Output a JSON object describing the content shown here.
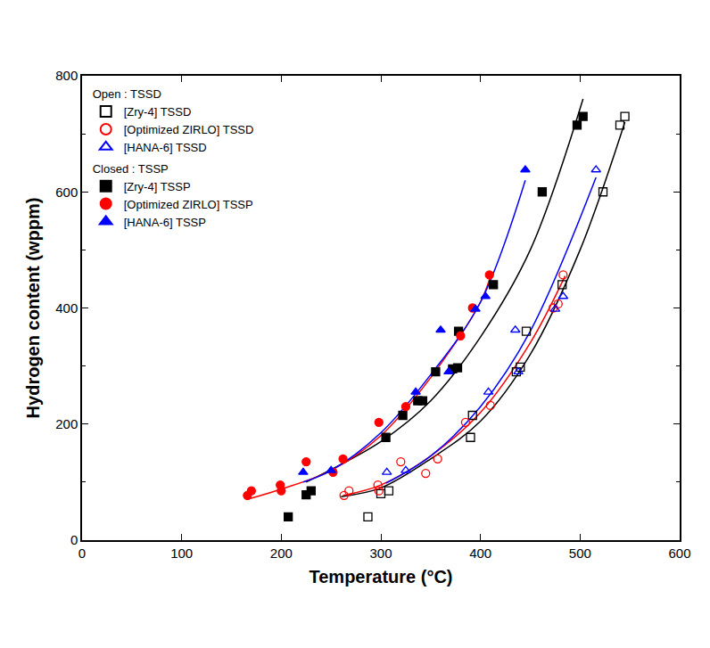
{
  "chart_data": {
    "type": "scatter",
    "x_label": "Temperature (°C)",
    "y_label": "Hydrogen content (wppm)",
    "xlim": [
      0,
      600
    ],
    "xticks": [
      0,
      100,
      200,
      300,
      400,
      500,
      600
    ],
    "ylim": [
      0,
      800
    ],
    "yticks": [
      0,
      200,
      400,
      600,
      800
    ],
    "grid": false,
    "legend": "top-left",
    "series": [
      {
        "name": "[Zry-4] TSSD",
        "group": "Open : TSSD",
        "color": "#000000",
        "marker": "square-open",
        "x": [
          287,
          300,
          308,
          390,
          392,
          436,
          440,
          446,
          482,
          523,
          540,
          545
        ],
        "values": [
          40,
          80,
          85,
          177,
          215,
          290,
          298,
          360,
          440,
          600,
          715,
          730
        ],
        "fit": {
          "x": [
            260,
            300,
            350,
            400,
            450,
            500,
            545
          ],
          "values": [
            75,
            90,
            140,
            205,
            320,
            500,
            720
          ]
        }
      },
      {
        "name": "[Optimized ZIRLO] TSSD",
        "group": "Open : TSSD",
        "color": "#ff0000",
        "marker": "circle-open",
        "x": [
          263,
          268,
          297,
          298,
          320,
          345,
          357,
          385,
          410,
          473,
          478,
          483
        ],
        "values": [
          77,
          85,
          95,
          85,
          135,
          115,
          140,
          203,
          232,
          400,
          407,
          457
        ],
        "fit": {
          "x": [
            262,
            300,
            350,
            400,
            450,
            485
          ],
          "values": [
            77,
            95,
            145,
            220,
            340,
            455
          ]
        }
      },
      {
        "name": "[HANA-6] TSSD",
        "group": "Open : TSSD",
        "color": "#0000ff",
        "marker": "triangle-up-open",
        "x": [
          306,
          325,
          408,
          435,
          438,
          475,
          483,
          516
        ],
        "values": [
          117,
          120,
          255,
          362,
          290,
          398,
          420,
          638
        ],
        "fit": {
          "x": [
            305,
            350,
            400,
            450,
            516
          ],
          "values": [
            98,
            145,
            230,
            360,
            625
          ]
        }
      },
      {
        "name": "[Zry-4] TSSP",
        "group": "Closed : TSSP",
        "color": "#000000",
        "marker": "square",
        "x": [
          207,
          225,
          230,
          305,
          322,
          337,
          342,
          355,
          372,
          377,
          378,
          413,
          462,
          497,
          503
        ],
        "values": [
          40,
          78,
          85,
          177,
          215,
          240,
          240,
          290,
          295,
          297,
          360,
          440,
          600,
          715,
          730
        ],
        "fit": {
          "x": [
            225,
            300,
            350,
            400,
            450,
            503
          ],
          "values": [
            100,
            170,
            240,
            350,
            500,
            760
          ]
        }
      },
      {
        "name": "[Optimized ZIRLO] TSSP",
        "group": "Closed : TSSP",
        "color": "#ff0000",
        "marker": "circle",
        "x": [
          166,
          170,
          199,
          200,
          225,
          252,
          262,
          298,
          325,
          380,
          392,
          409
        ],
        "values": [
          77,
          85,
          95,
          85,
          135,
          117,
          140,
          203,
          230,
          352,
          400,
          457
        ],
        "fit": {
          "x": [
            165,
            200,
            250,
            300,
            350,
            400,
            410
          ],
          "values": [
            70,
            88,
            120,
            180,
            280,
            410,
            455
          ]
        }
      },
      {
        "name": "[HANA-6] TSSP",
        "group": "Closed : TSSP",
        "color": "#0000ff",
        "marker": "triangle-up",
        "x": [
          222,
          250,
          335,
          360,
          368,
          395,
          405,
          445
        ],
        "values": [
          117,
          120,
          255,
          362,
          290,
          398,
          420,
          638
        ],
        "fit": {
          "x": [
            222,
            250,
            300,
            350,
            400,
            445
          ],
          "values": [
            100,
            120,
            185,
            285,
            410,
            620
          ]
        }
      }
    ]
  }
}
